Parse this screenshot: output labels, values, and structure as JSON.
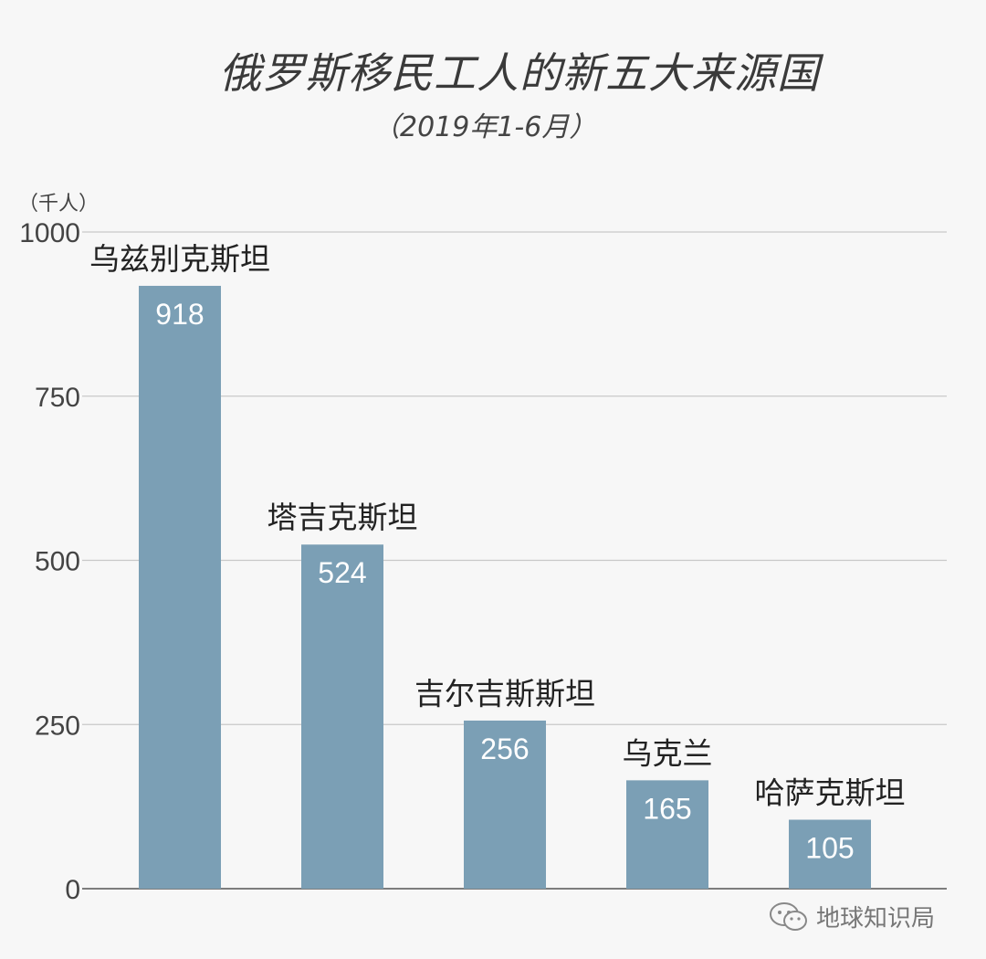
{
  "chart_data": {
    "type": "bar",
    "title": "俄罗斯移民工人的新五大来源国",
    "subtitle": "（2019年1-6月）",
    "unit_label": "（千人）",
    "categories": [
      "乌兹别克斯坦",
      "塔吉克斯坦",
      "吉尔吉斯斯坦",
      "乌克兰",
      "哈萨克斯坦"
    ],
    "values": [
      918,
      524,
      256,
      165,
      105
    ],
    "value_labels": [
      "918",
      "524",
      "256",
      "165",
      "105"
    ],
    "ylim": [
      0,
      1000
    ],
    "yticks": [
      0,
      250,
      500,
      750,
      1000
    ],
    "ytick_labels": [
      "0",
      "250",
      "500",
      "750",
      "1000"
    ],
    "grid": true,
    "colors": {
      "bar": "#7b9fb5",
      "grid": "#c8c8c8",
      "axis": "#555555",
      "value_label": "#ffffff",
      "category_label": "#222222",
      "background": "#f7f7f7"
    }
  },
  "watermark": {
    "icon": "wechat-icon",
    "text": "地球知识局"
  }
}
